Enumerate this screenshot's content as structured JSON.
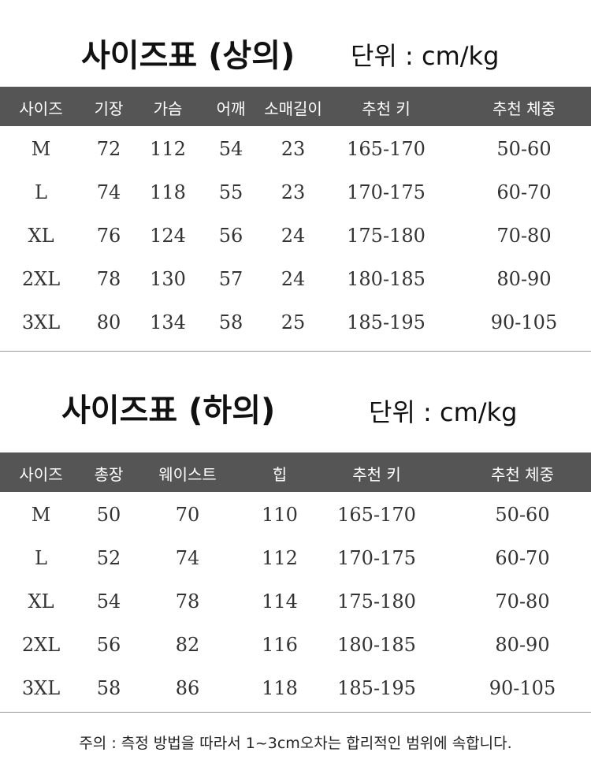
{
  "top": {
    "title": "사이즈표 (상의)",
    "unit": "단위 : cm/kg",
    "headers": [
      "사이즈",
      "기장",
      "가슴",
      "어깨",
      "소매길이",
      "추천 키",
      "추천 체중"
    ],
    "rows": [
      [
        "M",
        "72",
        "112",
        "54",
        "23",
        "165-170",
        "50-60"
      ],
      [
        "L",
        "74",
        "118",
        "55",
        "23",
        "170-175",
        "60-70"
      ],
      [
        "XL",
        "76",
        "124",
        "56",
        "24",
        "175-180",
        "70-80"
      ],
      [
        "2XL",
        "78",
        "130",
        "57",
        "24",
        "180-185",
        "80-90"
      ],
      [
        "3XL",
        "80",
        "134",
        "58",
        "25",
        "185-195",
        "90-105"
      ]
    ]
  },
  "bottom": {
    "title": "사이즈표 (하의)",
    "unit": "단위 : cm/kg",
    "headers": [
      "사이즈",
      "총장",
      "웨이스트",
      "힙",
      "추천 키",
      "추천 체중"
    ],
    "rows": [
      [
        "M",
        "50",
        "70",
        "110",
        "165-170",
        "50-60"
      ],
      [
        "L",
        "52",
        "74",
        "112",
        "170-175",
        "60-70"
      ],
      [
        "XL",
        "54",
        "78",
        "114",
        "175-180",
        "70-80"
      ],
      [
        "2XL",
        "56",
        "82",
        "116",
        "180-185",
        "80-90"
      ],
      [
        "3XL",
        "58",
        "86",
        "118",
        "185-195",
        "90-105"
      ]
    ]
  },
  "note": "주의 : 측정 방법을 따라서 1~3cm오차는 합리적인 범위에 속합니다.",
  "colors": {
    "header_bg": "#555555",
    "header_text": "#ffffff"
  }
}
